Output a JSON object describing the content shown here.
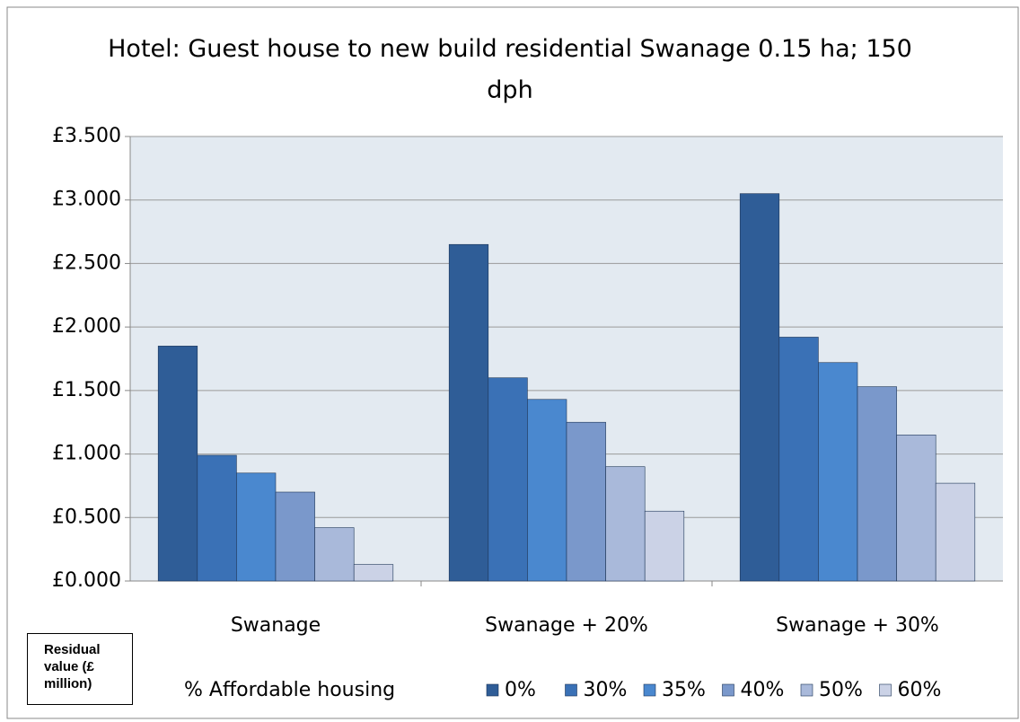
{
  "chart_data": {
    "type": "bar",
    "title": "Hotel: Guest house to new build residential Swanage 0.15 ha; 150 dph",
    "y_label": "Residual value (£ million)",
    "legend_title": "% Affordable housing",
    "categories": [
      "Swanage",
      "Swanage + 20%",
      "Swanage + 30%"
    ],
    "series": [
      {
        "name": "0%",
        "color": "#2f5d97",
        "values": [
          1.85,
          2.65,
          3.05
        ]
      },
      {
        "name": "30%",
        "color": "#3a71b6",
        "values": [
          0.99,
          1.6,
          1.92
        ]
      },
      {
        "name": "35%",
        "color": "#4a88cf",
        "values": [
          0.85,
          1.43,
          1.72
        ]
      },
      {
        "name": "40%",
        "color": "#7a98cb",
        "values": [
          0.7,
          1.25,
          1.53
        ]
      },
      {
        "name": "50%",
        "color": "#a9b9da",
        "values": [
          0.42,
          0.9,
          1.15
        ]
      },
      {
        "name": "60%",
        "color": "#cbd2e6",
        "values": [
          0.13,
          0.55,
          0.77
        ]
      }
    ],
    "ylim": [
      0,
      3.5
    ],
    "yticks": [
      {
        "value": 0,
        "label": "£0.000"
      },
      {
        "value": 0.5,
        "label": "£0.500"
      },
      {
        "value": 1,
        "label": "£1.000"
      },
      {
        "value": 1.5,
        "label": "£1.500"
      },
      {
        "value": 2,
        "label": "£2.000"
      },
      {
        "value": 2.5,
        "label": "£2.500"
      },
      {
        "value": 3,
        "label": "£3.000"
      },
      {
        "value": 3.5,
        "label": "£3.500"
      }
    ],
    "grid": true,
    "legend": "bottom"
  }
}
